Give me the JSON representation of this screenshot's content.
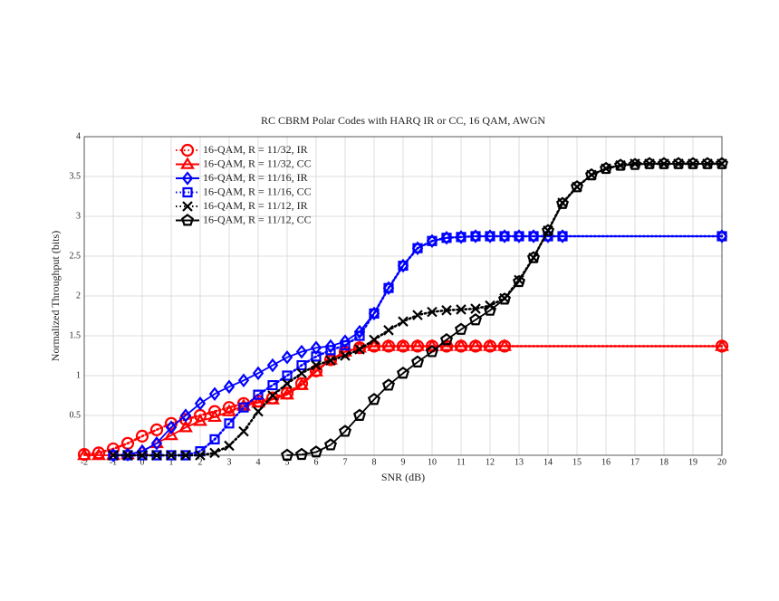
{
  "chart_data": {
    "type": "line",
    "title": "RC CBRM Polar Codes with HARQ IR or CC, 16 QAM, AWGN",
    "x_label": "SNR (dB)",
    "y_label": "Normalized Throughput (bits)",
    "xlim": [
      -2,
      20
    ],
    "ylim": [
      0,
      4
    ],
    "xticks": [
      -2,
      -1,
      0,
      1,
      2,
      3,
      4,
      5,
      6,
      7,
      8,
      9,
      10,
      11,
      12,
      13,
      14,
      15,
      16,
      17,
      18,
      19,
      20
    ],
    "yticks": [
      0.5,
      1,
      1.5,
      2,
      2.5,
      3,
      3.5,
      4
    ],
    "grid": true,
    "legend": "upper left",
    "series": [
      {
        "name": "16-QAM, R = 11/32, IR",
        "color": "#ff0000",
        "marker": "circle",
        "linestyle": "dotted",
        "x": [
          -2,
          -1.5,
          -1,
          -0.5,
          0,
          0.5,
          1,
          1.5,
          2,
          2.5,
          3,
          3.5,
          4,
          4.5,
          5,
          5.5,
          6,
          6.5,
          7,
          7.5,
          8,
          8.5,
          9,
          9.5,
          10,
          10.5,
          11,
          11.5,
          12,
          12.5,
          20
        ],
        "values": [
          0.01,
          0.03,
          0.08,
          0.15,
          0.24,
          0.32,
          0.4,
          0.45,
          0.5,
          0.55,
          0.6,
          0.65,
          0.68,
          0.72,
          0.78,
          0.9,
          1.06,
          1.2,
          1.3,
          1.35,
          1.37,
          1.37,
          1.37,
          1.37,
          1.37,
          1.37,
          1.37,
          1.37,
          1.37,
          1.37,
          1.37
        ]
      },
      {
        "name": "16-QAM, R = 11/32, CC",
        "color": "#ff0000",
        "marker": "triangle",
        "linestyle": "solid",
        "x": [
          -2,
          -1.5,
          -1,
          -0.5,
          0,
          0.5,
          1,
          1.5,
          2,
          2.5,
          3,
          3.5,
          4,
          4.5,
          5,
          5.5,
          6,
          6.5,
          7,
          7.5,
          8,
          8.5,
          9,
          9.5,
          10,
          10.5,
          11,
          11.5,
          12,
          12.5,
          20
        ],
        "values": [
          0,
          0,
          0,
          0.01,
          0.05,
          0.15,
          0.25,
          0.35,
          0.43,
          0.48,
          0.55,
          0.62,
          0.66,
          0.7,
          0.76,
          0.88,
          1.05,
          1.2,
          1.3,
          1.35,
          1.37,
          1.37,
          1.37,
          1.37,
          1.37,
          1.37,
          1.37,
          1.37,
          1.37,
          1.37,
          1.37
        ]
      },
      {
        "name": "16-QAM, R = 11/16, IR",
        "color": "#0000ff",
        "marker": "diamond",
        "linestyle": "solid",
        "x": [
          -1,
          -0.5,
          0,
          0.5,
          1,
          1.5,
          2,
          2.5,
          3,
          3.5,
          4,
          4.5,
          5,
          5.5,
          6,
          6.5,
          7,
          7.5,
          8,
          8.5,
          9,
          9.5,
          10,
          10.5,
          11,
          11.5,
          12,
          12.5,
          13,
          13.5,
          14,
          14.5,
          20
        ],
        "values": [
          0,
          0.01,
          0.05,
          0.15,
          0.35,
          0.5,
          0.65,
          0.77,
          0.86,
          0.94,
          1.03,
          1.13,
          1.23,
          1.3,
          1.35,
          1.37,
          1.43,
          1.55,
          1.78,
          2.1,
          2.38,
          2.6,
          2.69,
          2.73,
          2.74,
          2.75,
          2.75,
          2.75,
          2.75,
          2.75,
          2.75,
          2.75,
          2.75
        ]
      },
      {
        "name": "16-QAM, R = 11/16, CC",
        "color": "#0000ff",
        "marker": "square",
        "linestyle": "dotted",
        "x": [
          -1,
          -0.5,
          0,
          0.5,
          1,
          1.5,
          2,
          2.5,
          3,
          3.5,
          4,
          4.5,
          5,
          5.5,
          6,
          6.5,
          7,
          7.5,
          8,
          8.5,
          9,
          9.5,
          10,
          10.5,
          11,
          11.5,
          12,
          12.5,
          13,
          13.5,
          14,
          14.5,
          20
        ],
        "values": [
          0,
          0,
          0,
          0,
          0,
          0,
          0.05,
          0.2,
          0.4,
          0.6,
          0.76,
          0.88,
          1.0,
          1.13,
          1.24,
          1.32,
          1.38,
          1.5,
          1.78,
          2.1,
          2.38,
          2.6,
          2.69,
          2.73,
          2.74,
          2.75,
          2.75,
          2.75,
          2.75,
          2.75,
          2.75,
          2.75,
          2.75
        ]
      },
      {
        "name": "16-QAM, R = 11/12, IR",
        "color": "#000000",
        "marker": "x",
        "linestyle": "dotted",
        "x": [
          -1,
          -0.5,
          0,
          0.5,
          1,
          1.5,
          2,
          2.5,
          3,
          3.5,
          4,
          4.5,
          5,
          5.5,
          6,
          6.5,
          7,
          7.5,
          8,
          8.5,
          9,
          9.5,
          10,
          10.5,
          11,
          11.5,
          12,
          12.5,
          13,
          13.5,
          14,
          14.5,
          15,
          15.5,
          16,
          16.5,
          17,
          17.5,
          18,
          18.5,
          19,
          19.5,
          20
        ],
        "values": [
          0,
          0,
          0,
          0,
          0,
          0,
          0,
          0.03,
          0.12,
          0.3,
          0.55,
          0.75,
          0.9,
          1.03,
          1.13,
          1.19,
          1.25,
          1.33,
          1.45,
          1.57,
          1.68,
          1.76,
          1.8,
          1.82,
          1.83,
          1.84,
          1.88,
          1.97,
          2.2,
          2.48,
          2.82,
          3.17,
          3.37,
          3.52,
          3.6,
          3.64,
          3.66,
          3.66,
          3.66,
          3.66,
          3.66,
          3.66,
          3.66
        ]
      },
      {
        "name": "16-QAM, R = 11/12, CC",
        "color": "#000000",
        "marker": "pentagon",
        "linestyle": "solid",
        "x": [
          5,
          5.5,
          6,
          6.5,
          7,
          7.5,
          8,
          8.5,
          9,
          9.5,
          10,
          10.5,
          11,
          11.5,
          12,
          12.5,
          13,
          13.5,
          14,
          14.5,
          15,
          15.5,
          16,
          16.5,
          17,
          17.5,
          18,
          18.5,
          19,
          19.5,
          20
        ],
        "values": [
          0,
          0.01,
          0.04,
          0.13,
          0.3,
          0.5,
          0.7,
          0.88,
          1.03,
          1.17,
          1.3,
          1.45,
          1.58,
          1.7,
          1.82,
          1.96,
          2.18,
          2.48,
          2.82,
          3.16,
          3.37,
          3.52,
          3.6,
          3.64,
          3.65,
          3.66,
          3.66,
          3.66,
          3.66,
          3.66,
          3.66
        ]
      }
    ]
  }
}
